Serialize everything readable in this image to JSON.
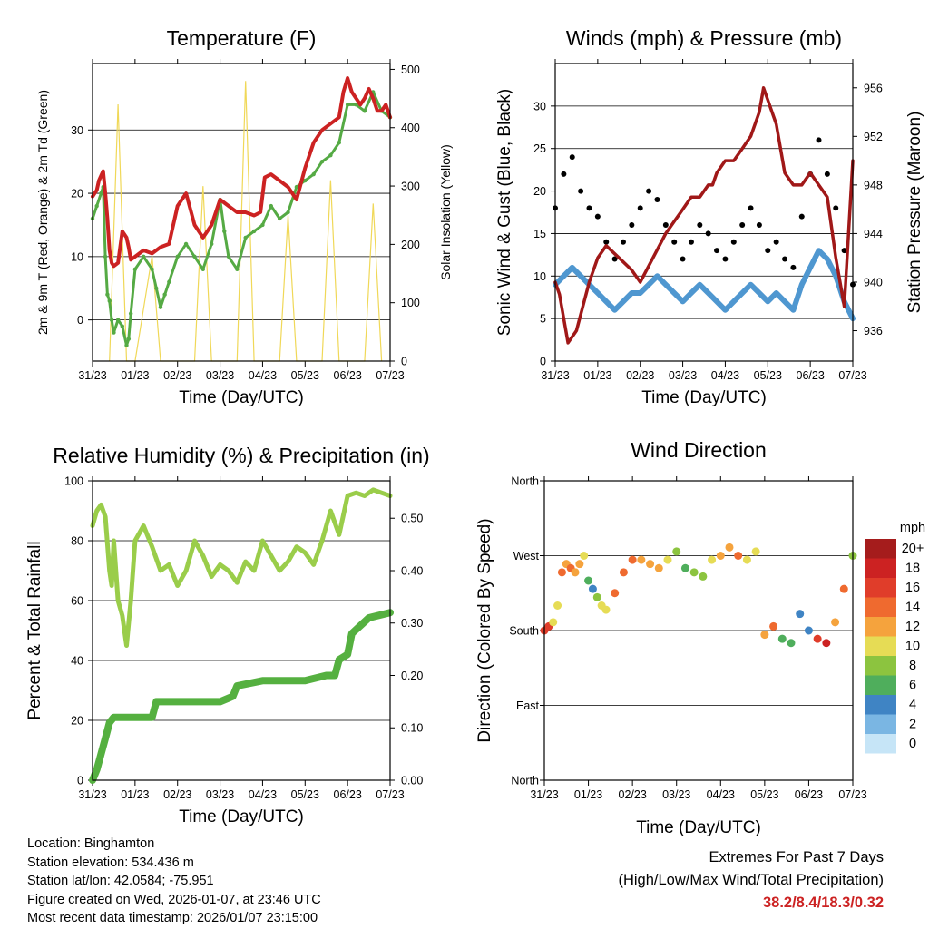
{
  "x_ticks": [
    "31/23",
    "01/23",
    "02/23",
    "03/23",
    "04/23",
    "05/23",
    "06/23",
    "07/23"
  ],
  "xlabel": "Time (Day/UTC)",
  "info": {
    "location": "Location: Binghamton",
    "elevation": "Station elevation: 534.436 m",
    "latlon": "Station lat/lon: 42.0584; -75.951",
    "created": "Figure created on Wed, 2026-01-07, at 23:46 UTC",
    "recent": "Most recent data timestamp: 2026/01/07 23:15:00"
  },
  "extremes": {
    "title": "Extremes For Past 7 Days",
    "subtitle": "(High/Low/Max Wind/Total Precipitation)",
    "values": "38.2/8.4/18.3/0.32"
  },
  "colors": {
    "temp": "#cc2222",
    "dew": "#55aa44",
    "solar": "#f0d858",
    "wind": "#4f97d0",
    "gust": "#000000",
    "pressure": "#a01818",
    "rh": "#9acd4a",
    "rain": "#55b040"
  },
  "chart_data": [
    {
      "type": "line",
      "title": "Temperature (F)",
      "xlabel": "Time (Day/UTC)",
      "ylabel": "2m & 9m T (Red, Orange) & 2m Td (Green)",
      "ylabel_right": "Solar Insolation (Yellow)",
      "ylim": [
        -6.5,
        40.5
      ],
      "yticks": [
        0,
        10,
        20,
        30
      ],
      "y2lim": [
        0,
        510
      ],
      "y2ticks": [
        0,
        100,
        200,
        300,
        400,
        500
      ],
      "series": [
        {
          "name": "2m T",
          "axis": "left",
          "x": [
            0,
            0.05,
            0.1,
            0.15,
            0.25,
            0.3,
            0.35,
            0.4,
            0.45,
            0.5,
            0.6,
            0.7,
            0.8,
            0.85,
            0.9,
            1.0,
            1.2,
            1.4,
            1.6,
            1.8,
            2.0,
            2.2,
            2.4,
            2.6,
            2.8,
            3.0,
            3.2,
            3.4,
            3.6,
            3.8,
            3.95,
            4.05,
            4.2,
            4.4,
            4.6,
            4.8,
            5.0,
            5.2,
            5.4,
            5.6,
            5.8,
            5.9,
            6.0,
            6.1,
            6.2,
            6.3,
            6.4,
            6.5,
            6.6,
            6.7,
            6.8,
            6.9,
            7.0
          ],
          "y": [
            19.5,
            20,
            20.5,
            22,
            23.5,
            20,
            16,
            11,
            9,
            8.5,
            9,
            14,
            13,
            11.5,
            9.5,
            10,
            11,
            10.5,
            11.5,
            12,
            18,
            20,
            15,
            13,
            15,
            19,
            18,
            17,
            17,
            16.5,
            17,
            22.5,
            23,
            22,
            21,
            19,
            24,
            28,
            30,
            31,
            32,
            36,
            38.2,
            36,
            35,
            34,
            35,
            36.5,
            35,
            33,
            33,
            34,
            32
          ]
        },
        {
          "name": "2m Td",
          "axis": "left",
          "x": [
            0,
            0.1,
            0.2,
            0.25,
            0.3,
            0.35,
            0.4,
            0.45,
            0.5,
            0.6,
            0.7,
            0.8,
            0.85,
            0.9,
            1.0,
            1.2,
            1.4,
            1.5,
            1.6,
            1.7,
            1.8,
            2.0,
            2.2,
            2.4,
            2.6,
            2.8,
            3.0,
            3.1,
            3.2,
            3.4,
            3.6,
            3.8,
            4.0,
            4.2,
            4.4,
            4.6,
            4.8,
            5.0,
            5.2,
            5.4,
            5.6,
            5.8,
            6.0,
            6.2,
            6.4,
            6.6,
            6.8,
            7.0
          ],
          "y": [
            16,
            18,
            20,
            21,
            10,
            4,
            3,
            0,
            -2,
            0,
            -1,
            -4,
            -3,
            1,
            8,
            10,
            8,
            5,
            2,
            4,
            6,
            10,
            12,
            10,
            8,
            12,
            19,
            14,
            10,
            8,
            13,
            14,
            15,
            18,
            16,
            17,
            21,
            22,
            23,
            25,
            26,
            28,
            34,
            34,
            33,
            36,
            33,
            32
          ]
        },
        {
          "name": "Solar Insolation",
          "axis": "right",
          "x": [
            0.4,
            0.6,
            0.8,
            1.0,
            1.4,
            1.6,
            1.8,
            2.4,
            2.6,
            2.8,
            3.4,
            3.6,
            3.8,
            4.4,
            4.6,
            4.8,
            5.4,
            5.6,
            5.8,
            6.4,
            6.6,
            6.8
          ],
          "y": [
            0,
            440,
            0,
            0,
            180,
            0,
            0,
            0,
            300,
            0,
            0,
            480,
            0,
            0,
            250,
            0,
            0,
            310,
            0,
            0,
            270,
            0
          ]
        }
      ]
    },
    {
      "type": "scatter",
      "title": "Winds (mph) & Pressure (mb)",
      "xlabel": "Time (Day/UTC)",
      "ylabel": "Sonic Wind & Gust (Blue, Black)",
      "ylabel_right": "Station Pressure (Maroon)",
      "ylim": [
        0,
        35
      ],
      "yticks": [
        0,
        5,
        10,
        15,
        20,
        25,
        30
      ],
      "y2lim": [
        933.5,
        958
      ],
      "y2ticks": [
        936,
        940,
        944,
        948,
        952,
        956
      ],
      "series": [
        {
          "name": "Sonic Wind",
          "x": [
            0,
            0.2,
            0.4,
            0.6,
            0.8,
            1.0,
            1.2,
            1.4,
            1.6,
            1.8,
            2.0,
            2.2,
            2.4,
            2.6,
            2.8,
            3.0,
            3.2,
            3.4,
            3.6,
            3.8,
            4.0,
            4.2,
            4.4,
            4.6,
            4.8,
            5.0,
            5.2,
            5.4,
            5.6,
            5.8,
            6.0,
            6.2,
            6.4,
            6.6,
            6.8,
            7.0
          ],
          "y": [
            9,
            10,
            11,
            10,
            9,
            8,
            7,
            6,
            7,
            8,
            8,
            9,
            10,
            9,
            8,
            7,
            8,
            9,
            8,
            7,
            6,
            7,
            8,
            9,
            8,
            7,
            8,
            7,
            6,
            9,
            11,
            13,
            12,
            10,
            7,
            5
          ]
        },
        {
          "name": "Gust",
          "x": [
            0,
            0.2,
            0.4,
            0.6,
            0.8,
            1.0,
            1.2,
            1.4,
            1.6,
            1.8,
            2.0,
            2.2,
            2.4,
            2.6,
            2.8,
            3.0,
            3.2,
            3.4,
            3.6,
            3.8,
            4.0,
            4.2,
            4.4,
            4.6,
            4.8,
            5.0,
            5.2,
            5.4,
            5.6,
            5.8,
            6.0,
            6.2,
            6.4,
            6.6,
            6.8,
            7.0
          ],
          "y": [
            18,
            22,
            24,
            20,
            18,
            17,
            14,
            12,
            14,
            16,
            18,
            20,
            19,
            16,
            14,
            12,
            14,
            16,
            15,
            13,
            12,
            14,
            16,
            18,
            16,
            13,
            14,
            12,
            11,
            17,
            22,
            26,
            22,
            18,
            13,
            9
          ]
        },
        {
          "name": "Station Pressure",
          "axis": "right",
          "x": [
            0,
            0.1,
            0.3,
            0.5,
            0.8,
            1.0,
            1.2,
            1.5,
            1.8,
            2.0,
            2.3,
            2.6,
            2.8,
            3.0,
            3.2,
            3.4,
            3.6,
            3.7,
            3.8,
            4.0,
            4.2,
            4.4,
            4.6,
            4.8,
            4.85,
            4.9,
            5.0,
            5.2,
            5.4,
            5.6,
            5.8,
            6.0,
            6.2,
            6.4,
            6.6,
            6.8,
            7.0
          ],
          "y": [
            940,
            939,
            935,
            936,
            940,
            942,
            943,
            942,
            941,
            940,
            942,
            944,
            945,
            946,
            947,
            947,
            948,
            948,
            949,
            950,
            950,
            951,
            952,
            954,
            955,
            956,
            955,
            953,
            949,
            948,
            948,
            949,
            948,
            947,
            942,
            938,
            950
          ]
        }
      ]
    },
    {
      "type": "line",
      "title": "Relative Humidity (%) & Precipitation (in)",
      "xlabel": "Time (Day/UTC)",
      "ylabel": "Percent & Total Rainfall",
      "ylim": [
        0,
        100
      ],
      "yticks": [
        0,
        20,
        40,
        60,
        80,
        100
      ],
      "y2lim": [
        0,
        0.5714
      ],
      "y2ticks": [
        "0.00",
        "0.10",
        "0.20",
        "0.30",
        "0.40",
        "0.50"
      ],
      "series": [
        {
          "name": "Relative Humidity",
          "axis": "left",
          "x": [
            0,
            0.1,
            0.2,
            0.3,
            0.4,
            0.45,
            0.5,
            0.6,
            0.7,
            0.8,
            0.9,
            1.0,
            1.2,
            1.4,
            1.6,
            1.8,
            2.0,
            2.2,
            2.4,
            2.6,
            2.8,
            3.0,
            3.2,
            3.4,
            3.6,
            3.8,
            4.0,
            4.2,
            4.4,
            4.6,
            4.8,
            5.0,
            5.2,
            5.4,
            5.6,
            5.8,
            6.0,
            6.2,
            6.4,
            6.6,
            6.8,
            7.0
          ],
          "y": [
            85,
            90,
            92,
            88,
            70,
            65,
            80,
            60,
            55,
            45,
            60,
            80,
            85,
            78,
            70,
            72,
            65,
            70,
            80,
            75,
            68,
            72,
            70,
            66,
            73,
            70,
            80,
            75,
            70,
            73,
            78,
            76,
            72,
            80,
            90,
            82,
            95,
            96,
            95,
            97,
            96,
            95
          ]
        },
        {
          "name": "Total Precipitation",
          "axis": "right",
          "x": [
            0,
            0.1,
            0.2,
            0.3,
            0.4,
            0.5,
            1.0,
            1.4,
            1.5,
            2.0,
            2.5,
            3.0,
            3.3,
            3.4,
            4.0,
            4.5,
            5.0,
            5.5,
            5.7,
            5.8,
            6.0,
            6.1,
            6.5,
            7.0
          ],
          "y": [
            0,
            0.02,
            0.05,
            0.08,
            0.11,
            0.12,
            0.12,
            0.12,
            0.15,
            0.15,
            0.15,
            0.15,
            0.16,
            0.18,
            0.19,
            0.19,
            0.19,
            0.2,
            0.2,
            0.23,
            0.24,
            0.28,
            0.31,
            0.32
          ]
        }
      ]
    },
    {
      "type": "scatter",
      "title": "Wind Direction",
      "xlabel": "Time (Day/UTC)",
      "ylabel": "Direction (Colored By Speed)",
      "yticks": [
        "North",
        "East",
        "South",
        "West",
        "North"
      ],
      "ylim": [
        0,
        360
      ],
      "colorbar": {
        "title": "mph",
        "labels": [
          "20+",
          "18",
          "16",
          "14",
          "12",
          "10",
          "8",
          "6",
          "4",
          "2",
          "0"
        ],
        "colors": [
          "#a51c1c",
          "#cc2222",
          "#e03d2a",
          "#ef6a2f",
          "#f5a33d",
          "#e6dc55",
          "#8cc43f",
          "#4fae5c",
          "#3f84c4",
          "#7ab6e3",
          "#c6e5f7"
        ]
      },
      "points": {
        "x": [
          0,
          0.1,
          0.2,
          0.3,
          0.4,
          0.5,
          0.6,
          0.7,
          0.8,
          0.9,
          1.0,
          1.1,
          1.2,
          1.3,
          1.4,
          1.6,
          1.8,
          2.0,
          2.2,
          2.4,
          2.6,
          2.8,
          3.0,
          3.2,
          3.4,
          3.6,
          3.8,
          4.0,
          4.2,
          4.4,
          4.6,
          4.8,
          5.0,
          5.2,
          5.4,
          5.6,
          5.8,
          6.0,
          6.2,
          6.4,
          6.6,
          6.8,
          7.0
        ],
        "y": [
          180,
          185,
          190,
          210,
          250,
          260,
          255,
          250,
          260,
          270,
          240,
          230,
          220,
          210,
          205,
          225,
          250,
          265,
          265,
          260,
          255,
          265,
          275,
          255,
          250,
          245,
          265,
          270,
          280,
          270,
          265,
          275,
          175,
          185,
          170,
          165,
          200,
          180,
          170,
          165,
          190,
          230,
          270
        ],
        "speed": [
          15,
          16,
          10,
          9,
          13,
          12,
          14,
          12,
          11,
          9,
          5,
          4,
          8,
          9,
          10,
          13,
          14,
          13,
          12,
          11,
          12,
          9,
          8,
          6,
          7,
          8,
          10,
          11,
          12,
          13,
          10,
          9,
          12,
          14,
          5,
          6,
          3,
          4,
          16,
          17,
          12,
          13,
          8
        ]
      }
    }
  ]
}
